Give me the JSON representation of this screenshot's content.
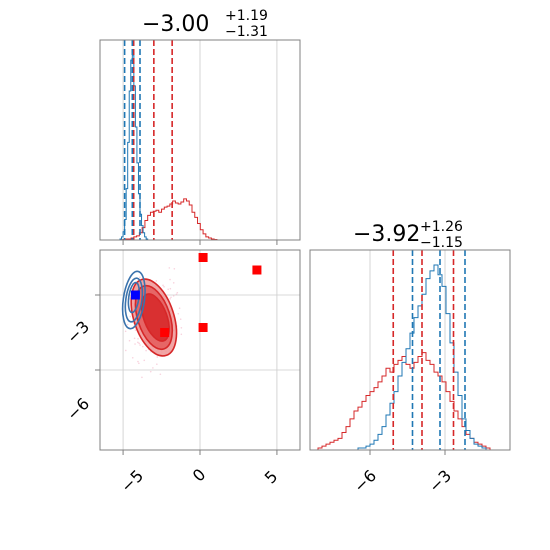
{
  "chart_data": {
    "type": "corner",
    "parameters": [
      {
        "title": {
          "median": "−3.00",
          "plus": "+1.19",
          "minus": "−1.31"
        },
        "xlim": [
          -6.5,
          6.5
        ],
        "quantiles": {
          "red": [
            -4.31,
            -3.0,
            -1.81
          ],
          "blue": [
            -4.9,
            -4.4,
            -3.9
          ]
        }
      },
      {
        "title": {
          "median": "−3.92",
          "plus": "+1.26",
          "minus": "−1.15"
        },
        "xlim": [
          -8.4,
          -0.4
        ],
        "quantiles": {
          "red": [
            -5.07,
            -3.92,
            -2.66
          ],
          "blue": [
            -4.3,
            -3.2,
            -2.2
          ]
        }
      }
    ],
    "panels": {
      "hist_top": {
        "xlim": [
          -6.5,
          6.5
        ],
        "xgrid": [
          -5,
          0,
          5
        ],
        "red_hist": {
          "edges_start": -5.2,
          "bin": 0.18,
          "counts": [
            0,
            0.5,
            1,
            1,
            2,
            3,
            4,
            7,
            12,
            19,
            24,
            27,
            28,
            29,
            27,
            30,
            32,
            33,
            35,
            38,
            36,
            35,
            37,
            40,
            38,
            34,
            27,
            22,
            16,
            10,
            6,
            3,
            2,
            1,
            0.5,
            0
          ]
        },
        "blue_hist": {
          "edges_start": -5.3,
          "bin": 0.1,
          "counts": [
            0,
            1,
            3,
            8,
            20,
            50,
            95,
            145,
            175,
            180,
            150,
            110,
            75,
            45,
            25,
            14,
            7,
            3,
            1,
            0
          ]
        }
      },
      "scatter": {
        "xlim": [
          -6.5,
          6.5
        ],
        "ylim": [
          -9.2,
          -1.2
        ],
        "xgrid": [
          -5,
          0,
          5
        ],
        "ygrid": [
          -3,
          -6
        ],
        "red_markers": [
          [
            0.2,
            -1.5
          ],
          [
            3.7,
            -2.0
          ],
          [
            0.2,
            -4.3
          ],
          [
            -2.3,
            -4.5
          ]
        ],
        "blue_markers": [
          [
            -4.2,
            -3.0
          ]
        ],
        "red_contours": [
          {
            "cx": -3.0,
            "cy": -3.9,
            "rx": 2.6,
            "ry": 2.9,
            "rot": -18,
            "fill": "#ee9595"
          },
          {
            "cx": -3.0,
            "cy": -3.9,
            "rx": 2.1,
            "ry": 2.4,
            "rot": -18,
            "fill": "#e45a5a"
          },
          {
            "cx": -2.9,
            "cy": -3.9,
            "rx": 1.5,
            "ry": 1.8,
            "rot": -20,
            "fill": "#d62728"
          }
        ],
        "blue_contours": [
          {
            "cx": -4.3,
            "cy": -3.2,
            "rx": 1.25,
            "ry": 2.1,
            "rot": 8
          },
          {
            "cx": -4.3,
            "cy": -3.2,
            "rx": 0.95,
            "ry": 1.6,
            "rot": 8
          },
          {
            "cx": -4.3,
            "cy": -3.1,
            "rx": 0.6,
            "ry": 1.1,
            "rot": 8
          }
        ]
      },
      "hist_right": {
        "xlim": [
          -8.4,
          -0.4
        ],
        "xgrid": [
          -6,
          -3
        ],
        "red_hist": {
          "edges_start": -8.4,
          "bin": 0.16,
          "counts": [
            0,
            0,
            1,
            2,
            3,
            4,
            5,
            6,
            9,
            12,
            16,
            20,
            22,
            25,
            28,
            30,
            32,
            35,
            38,
            42,
            40,
            44,
            46,
            48,
            44,
            42,
            45,
            48,
            50,
            46,
            44,
            40,
            38,
            35,
            30,
            25,
            20,
            16,
            12,
            8,
            6,
            4,
            3,
            2,
            1,
            0,
            0,
            0,
            0,
            0
          ]
        },
        "blue_hist": {
          "edges_start": -8.4,
          "bin": 0.16,
          "counts": [
            0,
            0,
            0,
            0,
            0,
            0,
            0,
            0,
            0,
            0,
            0,
            0,
            1,
            1,
            2,
            3,
            5,
            8,
            12,
            18,
            24,
            30,
            38,
            45,
            52,
            60,
            68,
            74,
            80,
            88,
            92,
            95,
            90,
            84,
            70,
            55,
            40,
            28,
            16,
            10,
            6,
            3,
            2,
            1,
            0,
            0,
            0,
            0,
            0,
            0
          ]
        }
      }
    },
    "tick_labels": {
      "x_bottom_left": [
        "−5",
        "0",
        "5"
      ],
      "x_bottom_right": [
        "−6",
        "−3"
      ],
      "y_left": [
        "−3",
        "−6"
      ]
    },
    "colors": {
      "red": "#d62728",
      "blue": "#1f77b4",
      "marker_red": "#ff0000",
      "marker_blue": "#0000ff"
    }
  }
}
